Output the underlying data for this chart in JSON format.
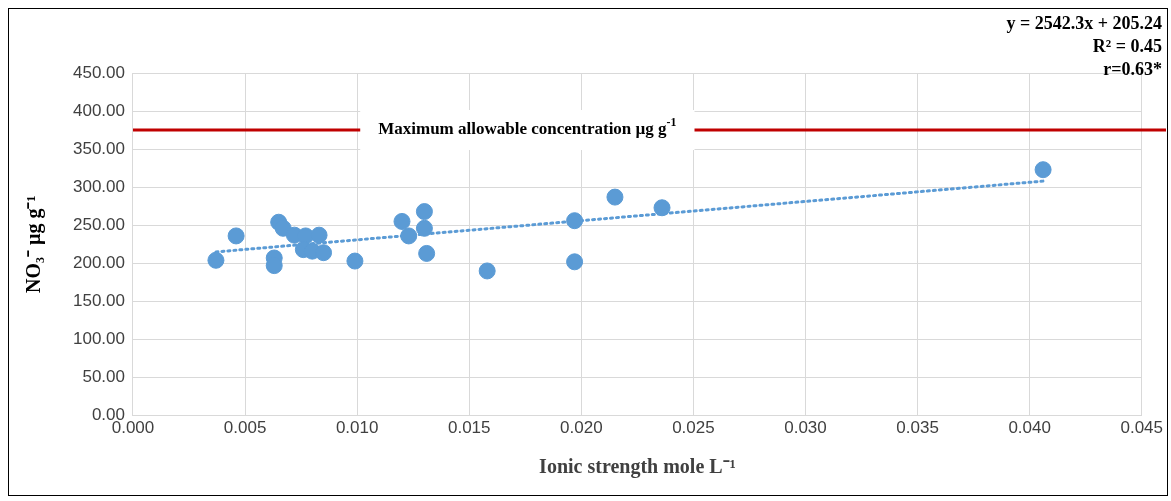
{
  "chart_data": {
    "type": "scatter",
    "xlabel": "Ionic strength mole L⁻¹",
    "ylabel": "NO₃⁻ µg g⁻¹",
    "annotations": [
      "y = 2542.3x + 205.24",
      "R² = 0.45",
      "r=0.63*"
    ],
    "xlim": [
      0,
      0.045
    ],
    "xticks": [
      {
        "value": 0,
        "label": "0.000"
      },
      {
        "value": 0.005,
        "label": "0.005"
      },
      {
        "value": 0.01,
        "label": "0.010"
      },
      {
        "value": 0.015,
        "label": "0.015"
      },
      {
        "value": 0.02,
        "label": "0.020"
      },
      {
        "value": 0.025,
        "label": "0.025"
      },
      {
        "value": 0.03,
        "label": "0.030"
      },
      {
        "value": 0.035,
        "label": "0.035"
      },
      {
        "value": 0.04,
        "label": "0.040"
      },
      {
        "value": 0.045,
        "label": "0.045"
      }
    ],
    "ylim": [
      0,
      450
    ],
    "yticks": [
      {
        "value": 0,
        "label": "0.00"
      },
      {
        "value": 50,
        "label": "50.00"
      },
      {
        "value": 100,
        "label": "100.00"
      },
      {
        "value": 150,
        "label": "150.00"
      },
      {
        "value": 200,
        "label": "200.00"
      },
      {
        "value": 250,
        "label": "250.00"
      },
      {
        "value": 300,
        "label": "300.00"
      },
      {
        "value": 350,
        "label": "350.00"
      },
      {
        "value": 400,
        "label": "400.00"
      },
      {
        "value": 450,
        "label": "450.00"
      }
    ],
    "grid": true,
    "legend": false,
    "marker": "circle",
    "ref_lines": [
      {
        "axis": "y",
        "value": 375,
        "label": "Maximum allowable concentration µg g$^{-1}$",
        "color": "#c00000"
      }
    ],
    "series": [
      {
        "type": "scatter",
        "color": "#5b9bd5",
        "x": [
          0.0037,
          0.0046,
          0.0065,
          0.0067,
          0.0063,
          0.0063,
          0.0072,
          0.0077,
          0.0083,
          0.0076,
          0.008,
          0.0085,
          0.0099,
          0.012,
          0.0122,
          0.0123,
          0.013,
          0.013,
          0.0131,
          0.0158,
          0.0197,
          0.0197,
          0.0215,
          0.0236,
          0.0406
        ],
        "values": [
          204,
          236,
          254,
          246,
          207,
          197,
          237,
          236,
          237,
          218,
          216,
          214,
          203,
          255,
          null,
          236,
          268,
          246,
          213,
          190,
          202,
          256,
          287,
          273,
          323
        ]
      },
      {
        "type": "line",
        "color": "#5b9bd5",
        "line_style": "dotted",
        "marker": "none",
        "x": [
          0.0037,
          0.0406
        ],
        "values": [
          215,
          308
        ]
      }
    ]
  }
}
